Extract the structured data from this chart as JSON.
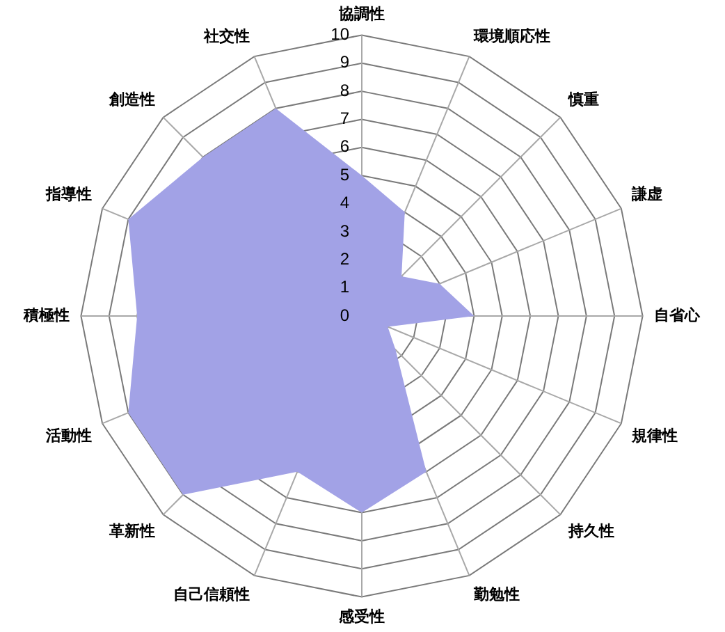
{
  "chart_data": {
    "type": "radar",
    "categories": [
      "協調性",
      "環境順応性",
      "慎重",
      "謙虚",
      "自省心",
      "規律性",
      "持久性",
      "勤勉性",
      "感受性",
      "自己信頼性",
      "革新性",
      "活動性",
      "積極性",
      "指導性",
      "創造性",
      "社交性"
    ],
    "series": [
      {
        "color": "#a2a2e6",
        "values": [
          5,
          4,
          2,
          3,
          4,
          1,
          1.7,
          6,
          7,
          6,
          9,
          9,
          8,
          9,
          8,
          8
        ]
      }
    ],
    "ylim": [
      0,
      10
    ],
    "yticks": [
      0,
      1,
      2,
      3,
      4,
      5,
      6,
      7,
      8,
      9,
      10
    ],
    "grid": true
  }
}
